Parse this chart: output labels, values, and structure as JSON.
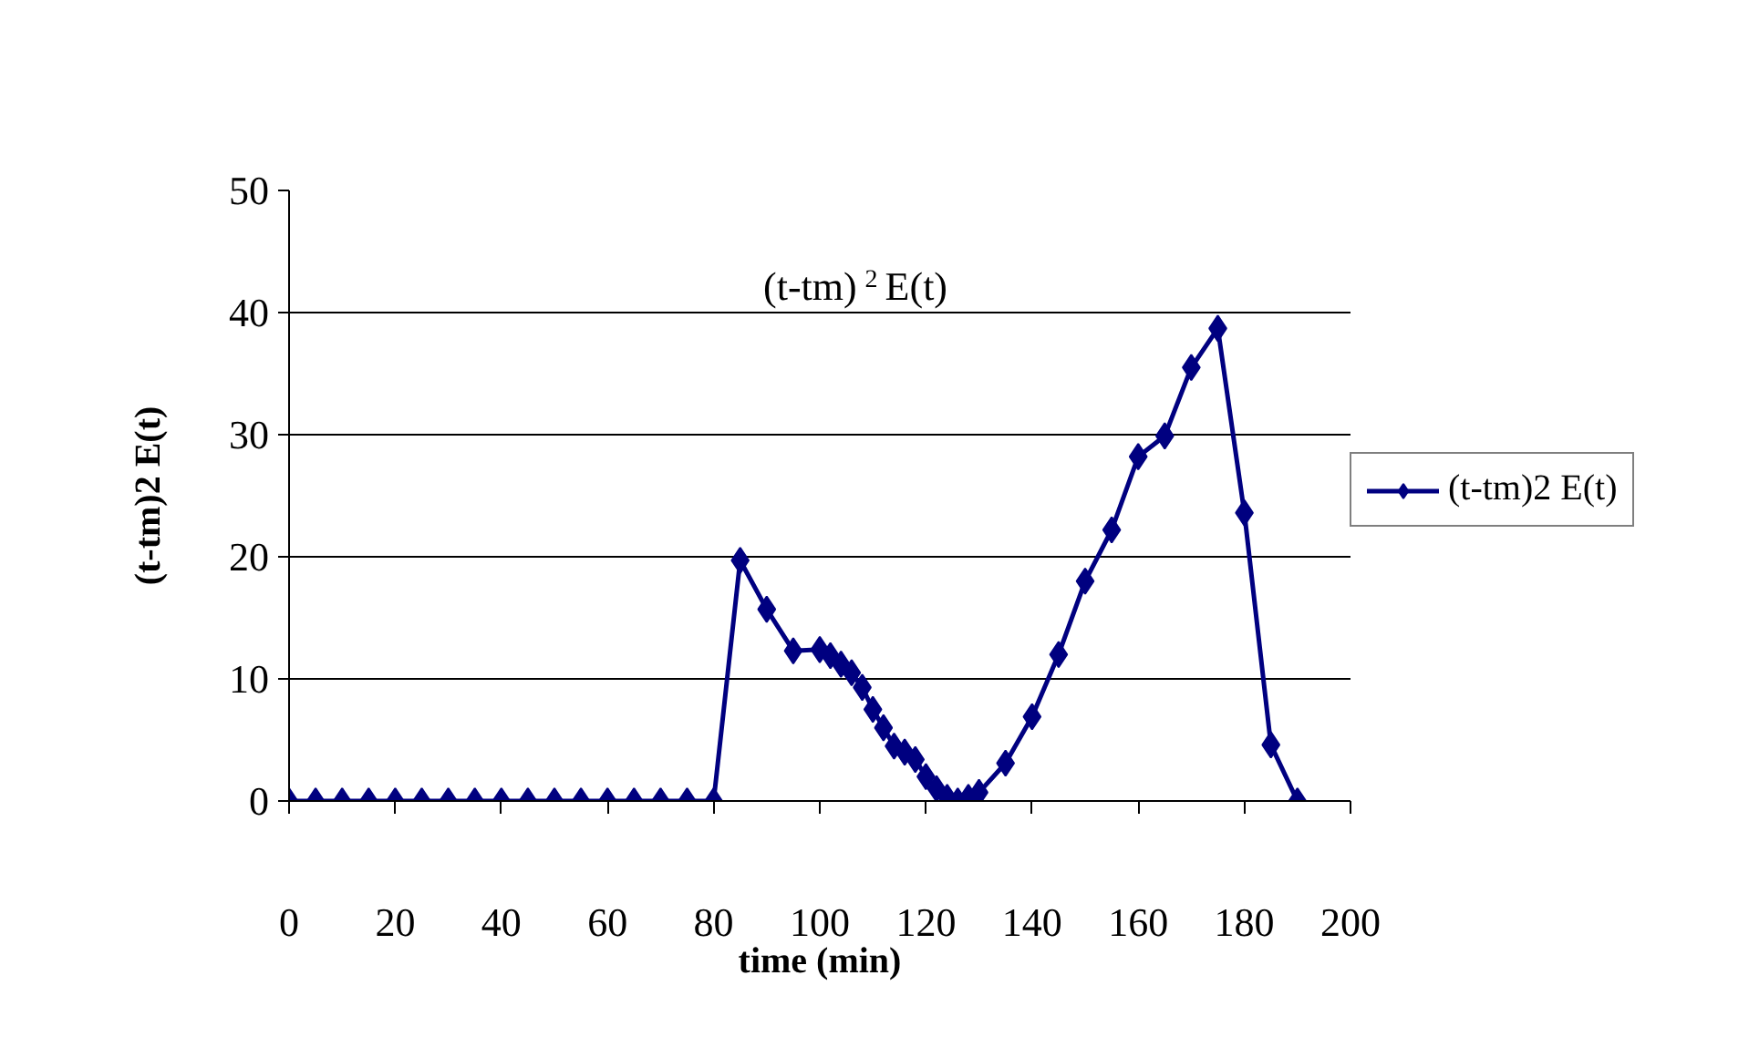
{
  "chart_data": {
    "type": "line",
    "title": "(t-tm)$^{2}$ E(t)",
    "xlabel": "time (min)",
    "ylabel": "(t-tm)2 E(t)",
    "x": [
      0,
      5,
      10,
      15,
      20,
      25,
      30,
      35,
      40,
      45,
      50,
      55,
      60,
      65,
      70,
      75,
      80,
      85,
      90,
      95,
      100,
      102,
      104,
      106,
      108,
      110,
      112,
      114,
      116,
      118,
      120,
      122,
      124,
      126,
      128,
      130,
      135,
      140,
      145,
      150,
      155,
      160,
      165,
      170,
      175,
      180,
      185,
      190
    ],
    "series": [
      {
        "name": "(t-tm)2 E(t)",
        "color": "#000080",
        "values": [
          0,
          0,
          0,
          0,
          0,
          0,
          0,
          0,
          0,
          0,
          0,
          0,
          0,
          0,
          0,
          0,
          0,
          19.7,
          15.7,
          12.3,
          12.4,
          11.9,
          11.2,
          10.5,
          9.3,
          7.5,
          6.0,
          4.5,
          4.0,
          3.4,
          2.0,
          1.0,
          0.3,
          0.0,
          0.3,
          0.7,
          3.1,
          6.9,
          12.0,
          18.0,
          22.2,
          28.2,
          29.9,
          35.5,
          38.7,
          23.6,
          4.6,
          0
        ]
      }
    ],
    "xlim": [
      0,
      200
    ],
    "xticks": [
      0,
      20,
      40,
      60,
      80,
      100,
      120,
      140,
      160,
      180,
      200
    ],
    "ylim": [
      0,
      50
    ],
    "yticks": [
      0,
      10,
      20,
      30,
      40,
      50
    ],
    "grid": "y",
    "legend": "right",
    "marker": "diamond",
    "line_style": "solid"
  }
}
